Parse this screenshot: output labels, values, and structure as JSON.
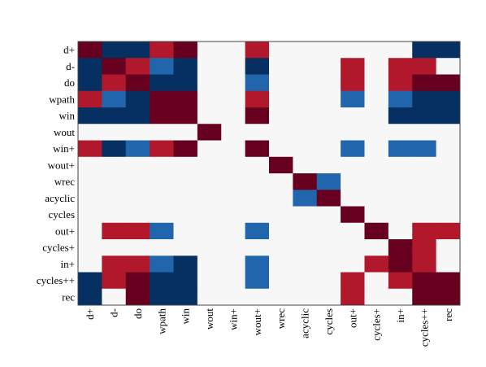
{
  "chart_data": {
    "type": "heatmap",
    "title": "",
    "xlabel": "",
    "ylabel": "",
    "labels": [
      "d+",
      "d-",
      "do",
      "wpath",
      "win",
      "wout",
      "win+",
      "wout+",
      "wrec",
      "acyclic",
      "cycles",
      "out+",
      "cycles+",
      "in+",
      "cycles++",
      "rec"
    ],
    "value_range": [
      -1,
      1
    ],
    "colors": {
      "strong_positive": "#67001f",
      "positive": "#b2182b",
      "zero": "#f7f7f7",
      "negative": "#2166ac",
      "strong_negative": "#053061",
      "frame": "#444444"
    },
    "matrix": [
      [
        1,
        -1,
        -1,
        0.5,
        1,
        0,
        0,
        0.5,
        0,
        0,
        0,
        0,
        0,
        0,
        -1,
        -1
      ],
      [
        -1,
        1,
        0.5,
        -0.5,
        -1,
        0,
        0,
        -1,
        0,
        0,
        0,
        0.5,
        0,
        0.5,
        0.5,
        0
      ],
      [
        -1,
        0.5,
        1,
        -1,
        -1,
        0,
        0,
        -0.5,
        0,
        0,
        0,
        0.5,
        0,
        0.5,
        1,
        1
      ],
      [
        0.5,
        -0.5,
        -1,
        1,
        1,
        0,
        0,
        0.5,
        0,
        0,
        0,
        -0.5,
        0,
        -0.5,
        -1,
        -1
      ],
      [
        -1,
        -1,
        -1,
        1,
        1,
        0,
        0,
        1,
        0,
        0,
        0,
        0,
        0,
        -1,
        -1,
        -1
      ],
      [
        0,
        0,
        0,
        0,
        0,
        1,
        0,
        0,
        0,
        0,
        0,
        0,
        0,
        0,
        0,
        0
      ],
      [
        0.5,
        -1,
        -0.5,
        0.5,
        1,
        0,
        0,
        1,
        0,
        0,
        0,
        -0.5,
        0,
        -0.5,
        -0.5,
        0
      ],
      [
        0,
        0,
        0,
        0,
        0,
        0,
        0,
        0,
        1,
        0,
        0,
        0,
        0,
        0,
        0,
        0
      ],
      [
        0,
        0,
        0,
        0,
        0,
        0,
        0,
        0,
        0,
        1,
        -0.5,
        0,
        0,
        0,
        0,
        0
      ],
      [
        0,
        0,
        0,
        0,
        0,
        0,
        0,
        0,
        0,
        -0.5,
        1,
        0,
        0,
        0,
        0,
        0
      ],
      [
        0,
        0,
        0,
        0,
        0,
        0,
        0,
        0,
        0,
        0,
        0,
        1,
        0,
        0,
        0,
        0
      ],
      [
        0,
        0.5,
        0.5,
        -0.5,
        0,
        0,
        0,
        -0.5,
        0,
        0,
        0,
        0,
        1,
        0,
        0.5,
        0.5
      ],
      [
        0,
        0,
        0,
        0,
        0,
        0,
        0,
        0,
        0,
        0,
        0,
        0,
        0,
        1,
        0.5,
        0
      ],
      [
        0,
        0.5,
        0.5,
        -0.5,
        -1,
        0,
        0,
        -0.5,
        0,
        0,
        0,
        0,
        0.5,
        1,
        0.5,
        0
      ],
      [
        -1,
        0.5,
        1,
        -1,
        -1,
        0,
        0,
        -0.5,
        0,
        0,
        0,
        0.5,
        0,
        0.5,
        1,
        1
      ],
      [
        -1,
        0,
        1,
        -1,
        -1,
        0,
        0,
        0,
        0,
        0,
        0,
        0.5,
        0,
        0,
        1,
        1
      ]
    ]
  }
}
